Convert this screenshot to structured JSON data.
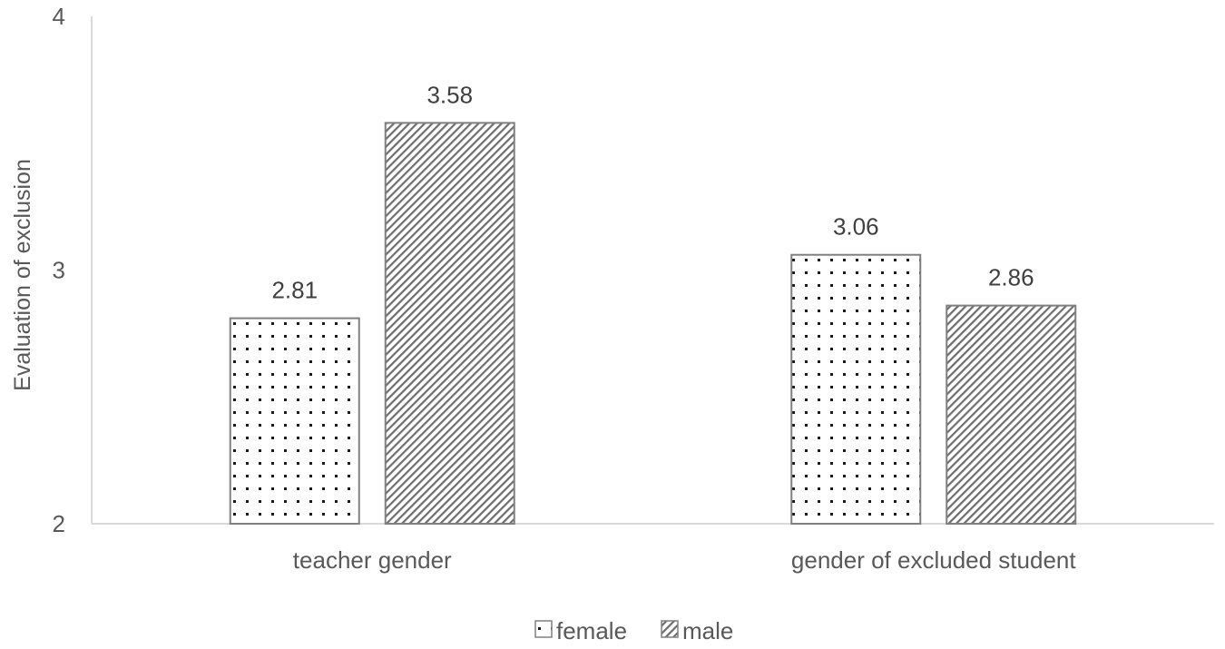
{
  "chart_data": {
    "type": "bar",
    "categories": [
      "teacher gender",
      "gender of excluded student"
    ],
    "series": [
      {
        "name": "female",
        "values": [
          2.81,
          3.06
        ],
        "pattern": "dots"
      },
      {
        "name": "male",
        "values": [
          3.58,
          2.86
        ],
        "pattern": "diagonal-hatch"
      }
    ],
    "data_labels": [
      [
        "2.81",
        "3.58"
      ],
      [
        "3.06",
        "2.86"
      ]
    ],
    "ylabel": "Evaluation of exclusion",
    "xlabel": "",
    "ylim": [
      2,
      4
    ],
    "yticks": [
      "2",
      "3",
      "4"
    ],
    "grid": false,
    "legend_position": "bottom-center",
    "colors": {
      "axis": "#d9d9d9",
      "bar_border": "#808080",
      "text": "#595959",
      "pattern": "#404040"
    }
  }
}
